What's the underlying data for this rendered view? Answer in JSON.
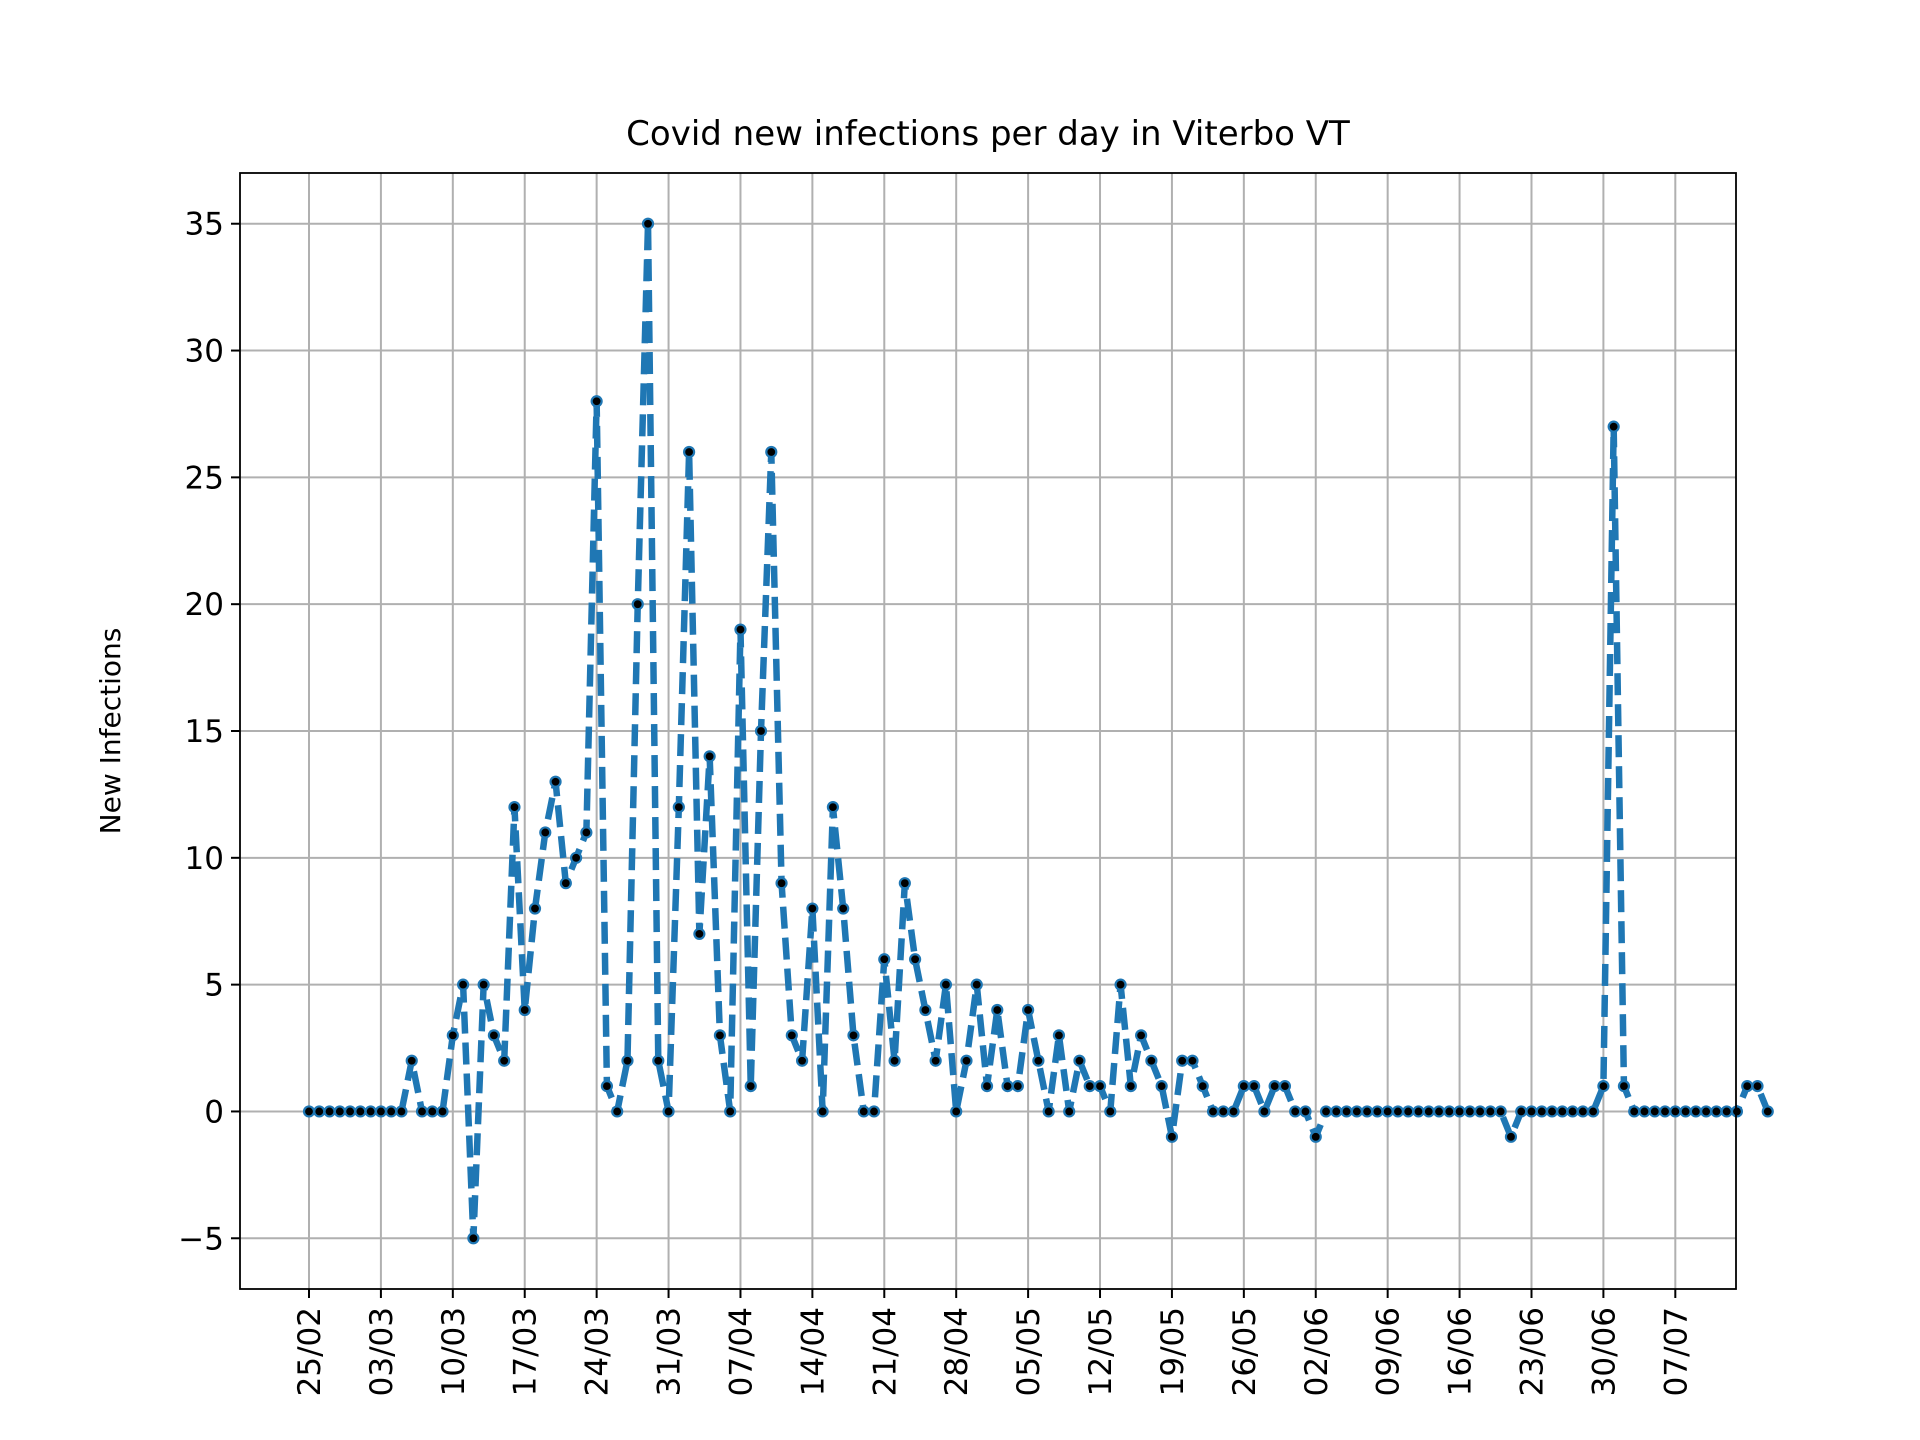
{
  "chart_data": {
    "type": "line",
    "title": "Covid new infections per day in Viterbo VT",
    "xlabel": "",
    "ylabel": "New Infections",
    "x_start": "2020-02-25",
    "x_end": "2020-07-08",
    "ylim": [
      -7,
      37
    ],
    "yticks": [
      -5,
      0,
      5,
      10,
      15,
      20,
      25,
      30,
      35
    ],
    "ytick_labels": [
      "−5",
      "0",
      "5",
      "10",
      "15",
      "20",
      "25",
      "30",
      "35"
    ],
    "xtick_labels": [
      "25/02",
      "03/03",
      "10/03",
      "17/03",
      "24/03",
      "31/03",
      "07/04",
      "14/04",
      "21/04",
      "28/04",
      "05/05",
      "12/05",
      "19/05",
      "26/05",
      "02/06",
      "09/06",
      "16/06",
      "23/06",
      "30/06",
      "07/07"
    ],
    "grid": true,
    "line_color": "#1f77b4",
    "marker_color": "#000000",
    "line_style": "dashed",
    "series": [
      {
        "values": [
          0,
          0,
          0,
          0,
          0,
          0,
          0,
          0,
          0,
          0,
          2,
          0,
          0,
          0,
          3,
          5,
          -5,
          5,
          3,
          2,
          12,
          4,
          8,
          11,
          13,
          9,
          10,
          11,
          28,
          1,
          0,
          2,
          20,
          35,
          2,
          0,
          12,
          26,
          7,
          14,
          3,
          0,
          19,
          1,
          15,
          26,
          9,
          3,
          2,
          8,
          0,
          12,
          8,
          3,
          0,
          0,
          6,
          2,
          9,
          6,
          4,
          2,
          5,
          0,
          2,
          5,
          1,
          4,
          1,
          1,
          4,
          2,
          0,
          3,
          0,
          2,
          1,
          1,
          0,
          5,
          1,
          3,
          2,
          1,
          -1,
          2,
          2,
          1,
          0,
          0,
          0,
          1,
          1,
          0,
          1,
          1,
          0,
          0,
          -1,
          0,
          0,
          0,
          0,
          0,
          0,
          0,
          0,
          0,
          0,
          0,
          0,
          0,
          0,
          0,
          0,
          0,
          0,
          -1,
          0,
          0,
          0,
          0,
          0,
          0,
          0,
          0,
          1,
          27,
          1,
          0,
          0,
          0,
          0,
          0,
          0,
          0,
          0,
          0,
          0,
          0,
          1,
          1,
          0
        ]
      }
    ]
  }
}
